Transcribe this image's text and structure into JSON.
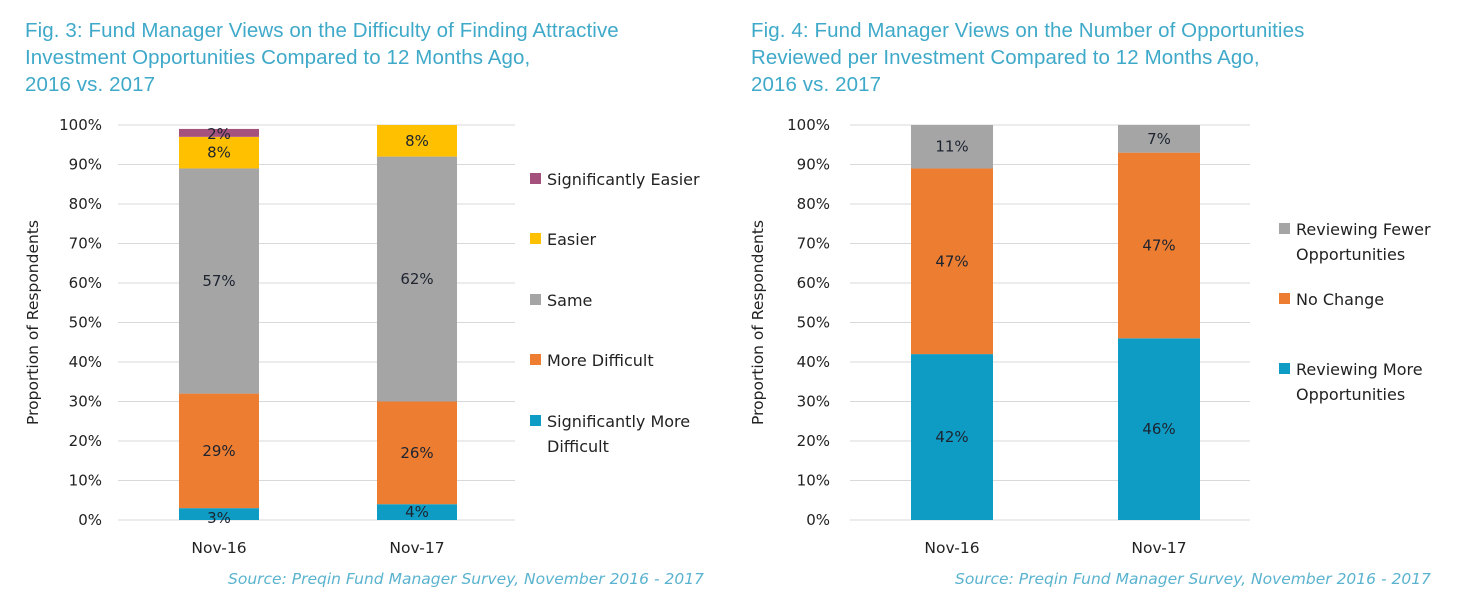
{
  "chart_data": [
    {
      "type": "bar",
      "stacked": true,
      "title": "Fig. 3: Fund Manager Views on the Difficulty of Finding Attractive\nInvestment Opportunities Compared to 12 Months Ago,\n2016 vs. 2017",
      "xlabel": "",
      "ylabel": "Proportion of Respondents",
      "ylim": [
        0,
        100
      ],
      "yticks": [
        "0%",
        "10%",
        "20%",
        "30%",
        "40%",
        "50%",
        "60%",
        "70%",
        "80%",
        "90%",
        "100%"
      ],
      "grid": true,
      "legend_position": "right",
      "categories": [
        "Nov-16",
        "Nov-17"
      ],
      "series": [
        {
          "name": "Significantly More Difficult",
          "color": "#0e9cc4",
          "values": [
            3,
            4
          ]
        },
        {
          "name": "More Difficult",
          "color": "#ed7d31",
          "values": [
            29,
            26
          ]
        },
        {
          "name": "Same",
          "color": "#a5a5a5",
          "values": [
            57,
            62
          ]
        },
        {
          "name": "Easier",
          "color": "#ffc000",
          "values": [
            8,
            8
          ]
        },
        {
          "name": "Significantly Easier",
          "color": "#a5517e",
          "values": [
            2,
            0
          ]
        }
      ],
      "source": "Source: Preqin Fund Manager Survey, November 2016 - 2017"
    },
    {
      "type": "bar",
      "stacked": true,
      "title": "Fig. 4: Fund Manager Views on the Number of Opportunities\nReviewed per Investment Compared to 12 Months Ago,\n2016 vs. 2017",
      "xlabel": "",
      "ylabel": "Proportion of Respondents",
      "ylim": [
        0,
        100
      ],
      "yticks": [
        "0%",
        "10%",
        "20%",
        "30%",
        "40%",
        "50%",
        "60%",
        "70%",
        "80%",
        "90%",
        "100%"
      ],
      "grid": true,
      "legend_position": "right",
      "categories": [
        "Nov-16",
        "Nov-17"
      ],
      "series": [
        {
          "name": "Reviewing More Opportunities",
          "color": "#0e9cc4",
          "values": [
            42,
            46
          ]
        },
        {
          "name": "No Change",
          "color": "#ed7d31",
          "values": [
            47,
            47
          ]
        },
        {
          "name": "Reviewing Fewer Opportunities",
          "color": "#a5a5a5",
          "values": [
            11,
            7
          ]
        }
      ],
      "source": "Source: Preqin Fund Manager Survey, November 2016 - 2017"
    }
  ]
}
